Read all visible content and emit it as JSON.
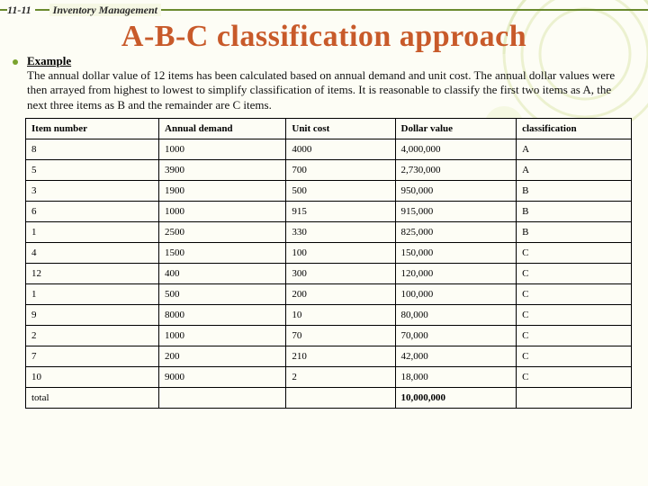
{
  "slide_number": "11-11",
  "header_label": "Inventory Management",
  "title": "A-B-C classification approach",
  "example_heading": "Example",
  "paragraph": "The annual dollar value of 12 items has been calculated based on annual demand and unit cost. The annual dollar values were then arrayed from highest to lowest to simplify classification of items. It is reasonable to classify the first two items as A, the next three items as B and the remainder are C items.",
  "table": {
    "columns": [
      "Item number",
      "Annual demand",
      "Unit cost",
      "Dollar value",
      "classification"
    ],
    "rows": [
      [
        "8",
        "1000",
        "4000",
        "4,000,000",
        "A"
      ],
      [
        "5",
        "3900",
        "700",
        "2,730,000",
        "A"
      ],
      [
        "3",
        "1900",
        "500",
        "950,000",
        "B"
      ],
      [
        "6",
        "1000",
        "915",
        "915,000",
        "B"
      ],
      [
        "1",
        "2500",
        "330",
        "825,000",
        "B"
      ],
      [
        "4",
        "1500",
        "100",
        "150,000",
        "C"
      ],
      [
        "12",
        "400",
        "300",
        "120,000",
        "C"
      ],
      [
        "1",
        "500",
        "200",
        "100,000",
        "C"
      ],
      [
        "9",
        "8000",
        "10",
        "80,000",
        "C"
      ],
      [
        "2",
        "1000",
        "70",
        "70,000",
        "C"
      ],
      [
        "7",
        "200",
        "210",
        "42,000",
        "C"
      ],
      [
        "10",
        "9000",
        "2",
        "18,000",
        "C"
      ]
    ],
    "total_label": "total",
    "total_value": "10,000,000"
  },
  "colors": {
    "title_color": "#c85a2a",
    "accent_green": "#6a8a2e",
    "bullet_green": "#7aa32e",
    "page_bg": "#fdfdf5",
    "swirl": "#d8e4a8"
  }
}
